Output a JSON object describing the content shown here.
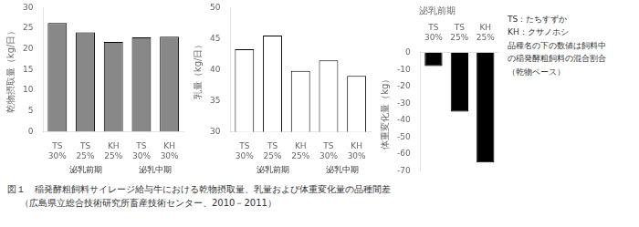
{
  "chart_data": [
    {
      "type": "bar",
      "categories": [
        "TS\n30%",
        "TS\n25%",
        "KH\n25%",
        "TS\n30%",
        "KH\n30%"
      ],
      "values": [
        26.3,
        24.0,
        21.7,
        22.8,
        23.0
      ],
      "color": "#888888",
      "ylabel": "乾物摂取量（kg/日）",
      "ylim": [
        0,
        30
      ],
      "yticks": [
        0,
        5,
        10,
        15,
        20,
        25,
        30
      ],
      "grid": false,
      "annotations": [
        "泌乳前期",
        "泌乳中期"
      ]
    },
    {
      "type": "bar",
      "categories": [
        "TS\n30%",
        "TS\n25%",
        "KH\n25%",
        "TS\n30%",
        "KH\n30%"
      ],
      "values": [
        43.3,
        45.5,
        39.8,
        41.5,
        39.0
      ],
      "color": "#ffffff",
      "ylabel": "乳量（kg/日）",
      "ylim": [
        30,
        50
      ],
      "yticks": [
        30,
        35,
        40,
        45,
        50
      ],
      "grid": false,
      "annotations": [
        "泌乳前期",
        "泌乳中期"
      ]
    },
    {
      "type": "bar",
      "title": "泌乳前期",
      "categories": [
        "TS\n30%",
        "TS\n25%",
        "KH\n25%"
      ],
      "values": [
        -8.0,
        -35.0,
        -65.0
      ],
      "color": "#000000",
      "ylabel": "体重変化量（kg）",
      "ylim": [
        -70,
        0
      ],
      "yticks": [
        0,
        -10,
        -20,
        -30,
        -40,
        -50,
        -60,
        -70
      ],
      "grid": false,
      "annotations": [
        "TS：たちすずか",
        "KH：クサノホシ",
        "品種名の下の数値は飼料中",
        "の稲発酵粗飼料の混合割合",
        "（乾物ベース）"
      ]
    }
  ],
  "caption": [
    "図１　稲発酵粗飼料サイレージ給与牛における乾物摂取量、乳量および体重変化量の品種間差",
    "（広島県立総合技術研究所畜産技術センター、2010－2011）"
  ]
}
